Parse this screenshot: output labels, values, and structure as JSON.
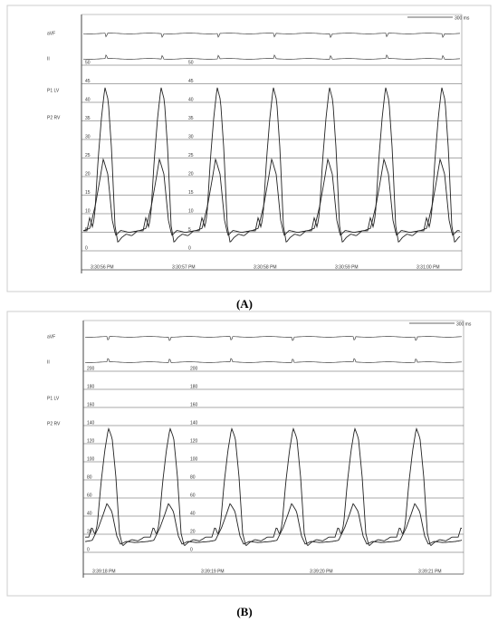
{
  "panels": [
    {
      "caption": "(A)",
      "scale_bar": "300 ms",
      "lead_labels": [
        "aVF",
        "II",
        "P1 LV",
        "P2 RV"
      ],
      "scale_labels": [
        50,
        45,
        40,
        35,
        30,
        25,
        20,
        15,
        10,
        5,
        0
      ],
      "times": [
        "3:30:56 PM",
        "3:30:57 PM",
        "3:30:58 PM",
        "3:30:59 PM",
        "3:31:00 PM"
      ]
    },
    {
      "caption": "(B)",
      "scale_bar": "300 ms",
      "lead_labels": [
        "aVF",
        "II",
        "P1 LV",
        "P2 RV"
      ],
      "scale_labels": [
        200,
        180,
        160,
        140,
        120,
        100,
        80,
        60,
        40,
        20,
        0
      ],
      "times": [
        "3:39:18 PM",
        "3:39:19 PM",
        "3:39:20 PM",
        "3:39:21 PM"
      ]
    }
  ]
}
